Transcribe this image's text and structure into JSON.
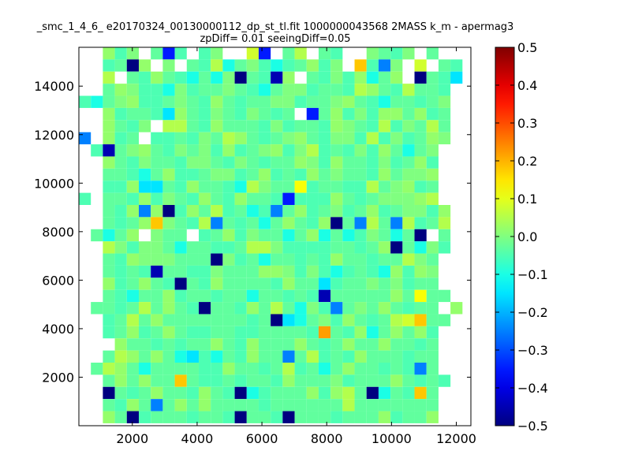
{
  "chart_data": {
    "type": "heatmap",
    "title": "_smc_1_4_6_ e20170324_00130000112_dp_st_tl.fit 1000000043568 2MASS k_m - apermag3",
    "subtitle": "zpDiff= 0.01 seeingDiff=0.05",
    "xlabel": "",
    "ylabel": "",
    "xlim": [
      350,
      12450
    ],
    "ylim": [
      0,
      15600
    ],
    "x_ticks": [
      2000,
      4000,
      6000,
      8000,
      10000,
      12000
    ],
    "y_ticks": [
      2000,
      4000,
      6000,
      8000,
      10000,
      12000,
      14000
    ],
    "x_tick_labels": [
      "2000",
      "4000",
      "6000",
      "8000",
      "10000",
      "12000"
    ],
    "y_tick_labels": [
      "2000",
      "4000",
      "6000",
      "8000",
      "10000",
      "12000",
      "14000"
    ],
    "colormap": "jet",
    "colorbar": {
      "vmin": -0.5,
      "vmax": 0.5,
      "ticks": [
        0.5,
        0.4,
        0.3,
        0.2,
        0.1,
        0.0,
        -0.1,
        -0.2,
        -0.3,
        -0.4,
        -0.5
      ],
      "tick_labels": [
        "0.5",
        "0.4",
        "0.3",
        "0.2",
        "0.1",
        "0.0",
        "−0.1",
        "−0.2",
        "−0.3",
        "−0.4",
        "−0.5"
      ]
    },
    "grid": false,
    "cell_size": [
      370,
      500
    ],
    "x0": 350,
    "y0": 0,
    "ncols": 32,
    "nrows": 31,
    "notes_on_values": "grid rows listed from top (y~15600) to bottom (y~0); characters map to values: _ empty, a=-0.5, b=-0.45, c=-0.35, d=-0.25, e=-0.15, f=-0.1, g=-0.05, h=-0.03, i=0, j=0.02, k=0.05, l=0.08, m=0.12, n=0.18, o=0.22",
    "grid_rows": [
      "__jgi_hcg_gi__lc_hk_hg__ihgi_h__",
      "__ghaj_i_hgkfhigfghjgi_ngdi_l_hg_",
      "__k_hgjhgfhfiahgbj_hgigjfhj_ahge_",
      "__hjiggfighhihgfhiighhgkjhgkhhg__",
      "gfhijgghihgjhghhiighhijhgfhhghi__",
      "__jghhgejhgihgihgh_chjgigjjhjgh__",
      "__jhgi_kkhgjhhhgighhgjihgkgihkh__",
      "d_jgh_gghgihkjhghijhgiigkgighji__",
      "_gbhijhgihigjghijgikghgigjhfhi___",
      "__jhgihhgiihgihghhjigjhhgighjg___",
      "__hhgfhjgghiighjghgjhihhgjhiij___",
      "__ggjeehgjhhgfkihhmghhggkhijgh___",
      "g_hhgjgihgjhgjhhgcgggjhghiiijk___",
      "__hgjdjagjhkghfgdhjghighjghiigj___",
      "__hghjnihgkdhghfhjhgjahdkhdkghk__",
      "_hfhj_ihh_ghjgihhfhjfhfgihfha_h__",
      "__kigiihfhhgghkkigggghhghjahfig__",
      "__hgjiiihhhaighfhhghgjhhghhkih___",
      "__hghgbhhggihhhjjigigfghgfjgji___",
      "__jghjhgahgjhhhhgjhheghhihighh___",
      "__hgfhhjghhghhfhhghgbhhhhhjhmhh__",
      "_hhghkhjhgahhgjhkhfigdhihjhghh_j_",
      "__ghkhjhhhhhhhghaefhigjhghklnhh__",
      "__ghjghjhgghhgghhhhgohgjfhjhjg___",
      "___jhhghghhjhgjhhhjhghjhhjhhgh___",
      "__hkjhjhfegfhgjhhdhkghgjhhhghh___",
      "_hkjhfhhhhggjhhghkghfhjhhghgdh___",
      "__hjhjhhnhgghghhgjhhhighhhjhghg__",
      "__ahghjhhgjhgafghhhjgjkhafhgnh___",
      "__hgjhdhjhjhhhhghhhhhhkhhhhhhh___",
      "__jhaghhhghhgahhgahhhghhhjghhj___"
    ]
  }
}
